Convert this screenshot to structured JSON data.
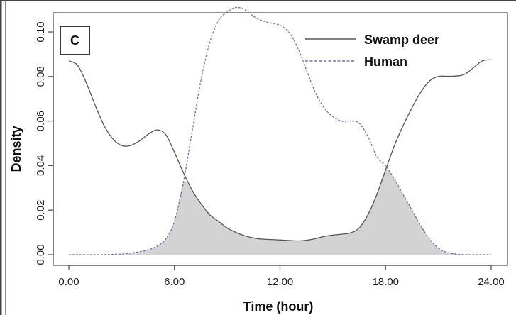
{
  "chart_data": {
    "type": "line",
    "panel_label": "C",
    "xlabel": "Time (hour)",
    "ylabel": "Density",
    "xlim": [
      0,
      24
    ],
    "ylim": [
      0,
      0.1
    ],
    "x_ticks": [
      "0.00",
      "6.00",
      "12.00",
      "18.00",
      "24.00"
    ],
    "x_tick_values": [
      0,
      6,
      12,
      18,
      24
    ],
    "y_ticks": [
      "0.00",
      "0.02",
      "0.04",
      "0.06",
      "0.08",
      "0.10"
    ],
    "y_tick_values": [
      0,
      0.02,
      0.04,
      0.06,
      0.08,
      0.1
    ],
    "overlap_shaded": true,
    "legend_position": "top-right",
    "series": [
      {
        "name": "Swamp deer",
        "style": "solid",
        "color": "#555555",
        "x": [
          0,
          0.5,
          1,
          1.5,
          2,
          2.5,
          3,
          3.5,
          4,
          4.5,
          5,
          5.5,
          6,
          6.5,
          7,
          7.5,
          8,
          8.5,
          9,
          9.5,
          10,
          10.5,
          11,
          11.5,
          12,
          12.5,
          13,
          13.5,
          14,
          14.5,
          15,
          15.5,
          16,
          16.5,
          17,
          17.5,
          18,
          18.5,
          19,
          19.5,
          20,
          20.5,
          21,
          21.5,
          22,
          22.5,
          23,
          23.5,
          24
        ],
        "y": [
          0.087,
          0.085,
          0.077,
          0.067,
          0.058,
          0.052,
          0.049,
          0.049,
          0.051,
          0.054,
          0.056,
          0.054,
          0.046,
          0.037,
          0.029,
          0.023,
          0.018,
          0.015,
          0.012,
          0.01,
          0.0085,
          0.0075,
          0.007,
          0.0068,
          0.0066,
          0.0064,
          0.0062,
          0.0065,
          0.0072,
          0.0082,
          0.0088,
          0.0092,
          0.0098,
          0.012,
          0.018,
          0.027,
          0.038,
          0.049,
          0.058,
          0.066,
          0.073,
          0.078,
          0.08,
          0.0801,
          0.0802,
          0.081,
          0.084,
          0.087,
          0.0875
        ]
      },
      {
        "name": "Human",
        "style": "dashed",
        "color": "#7a6bb5",
        "x": [
          0,
          0.5,
          1,
          1.5,
          2,
          2.5,
          3,
          3.5,
          4,
          4.5,
          5,
          5.5,
          6,
          6.5,
          7,
          7.5,
          8,
          8.5,
          9,
          9.5,
          10,
          10.5,
          11,
          11.5,
          12,
          12.5,
          13,
          13.5,
          14,
          14.5,
          15,
          15.5,
          16,
          16.5,
          17,
          17.5,
          18,
          18.5,
          19,
          19.5,
          20,
          20.5,
          21,
          21.5,
          22,
          22.5,
          23,
          23.5,
          24
        ],
        "y": [
          0,
          0,
          0,
          0,
          0,
          0.0001,
          0.0003,
          0.0007,
          0.0013,
          0.0022,
          0.0038,
          0.007,
          0.015,
          0.032,
          0.055,
          0.078,
          0.095,
          0.105,
          0.109,
          0.111,
          0.11,
          0.107,
          0.105,
          0.104,
          0.103,
          0.1,
          0.093,
          0.083,
          0.073,
          0.066,
          0.062,
          0.06,
          0.06,
          0.059,
          0.053,
          0.044,
          0.04,
          0.034,
          0.027,
          0.02,
          0.013,
          0.007,
          0.003,
          0.001,
          0.0003,
          0,
          0,
          0,
          0
        ]
      }
    ]
  }
}
